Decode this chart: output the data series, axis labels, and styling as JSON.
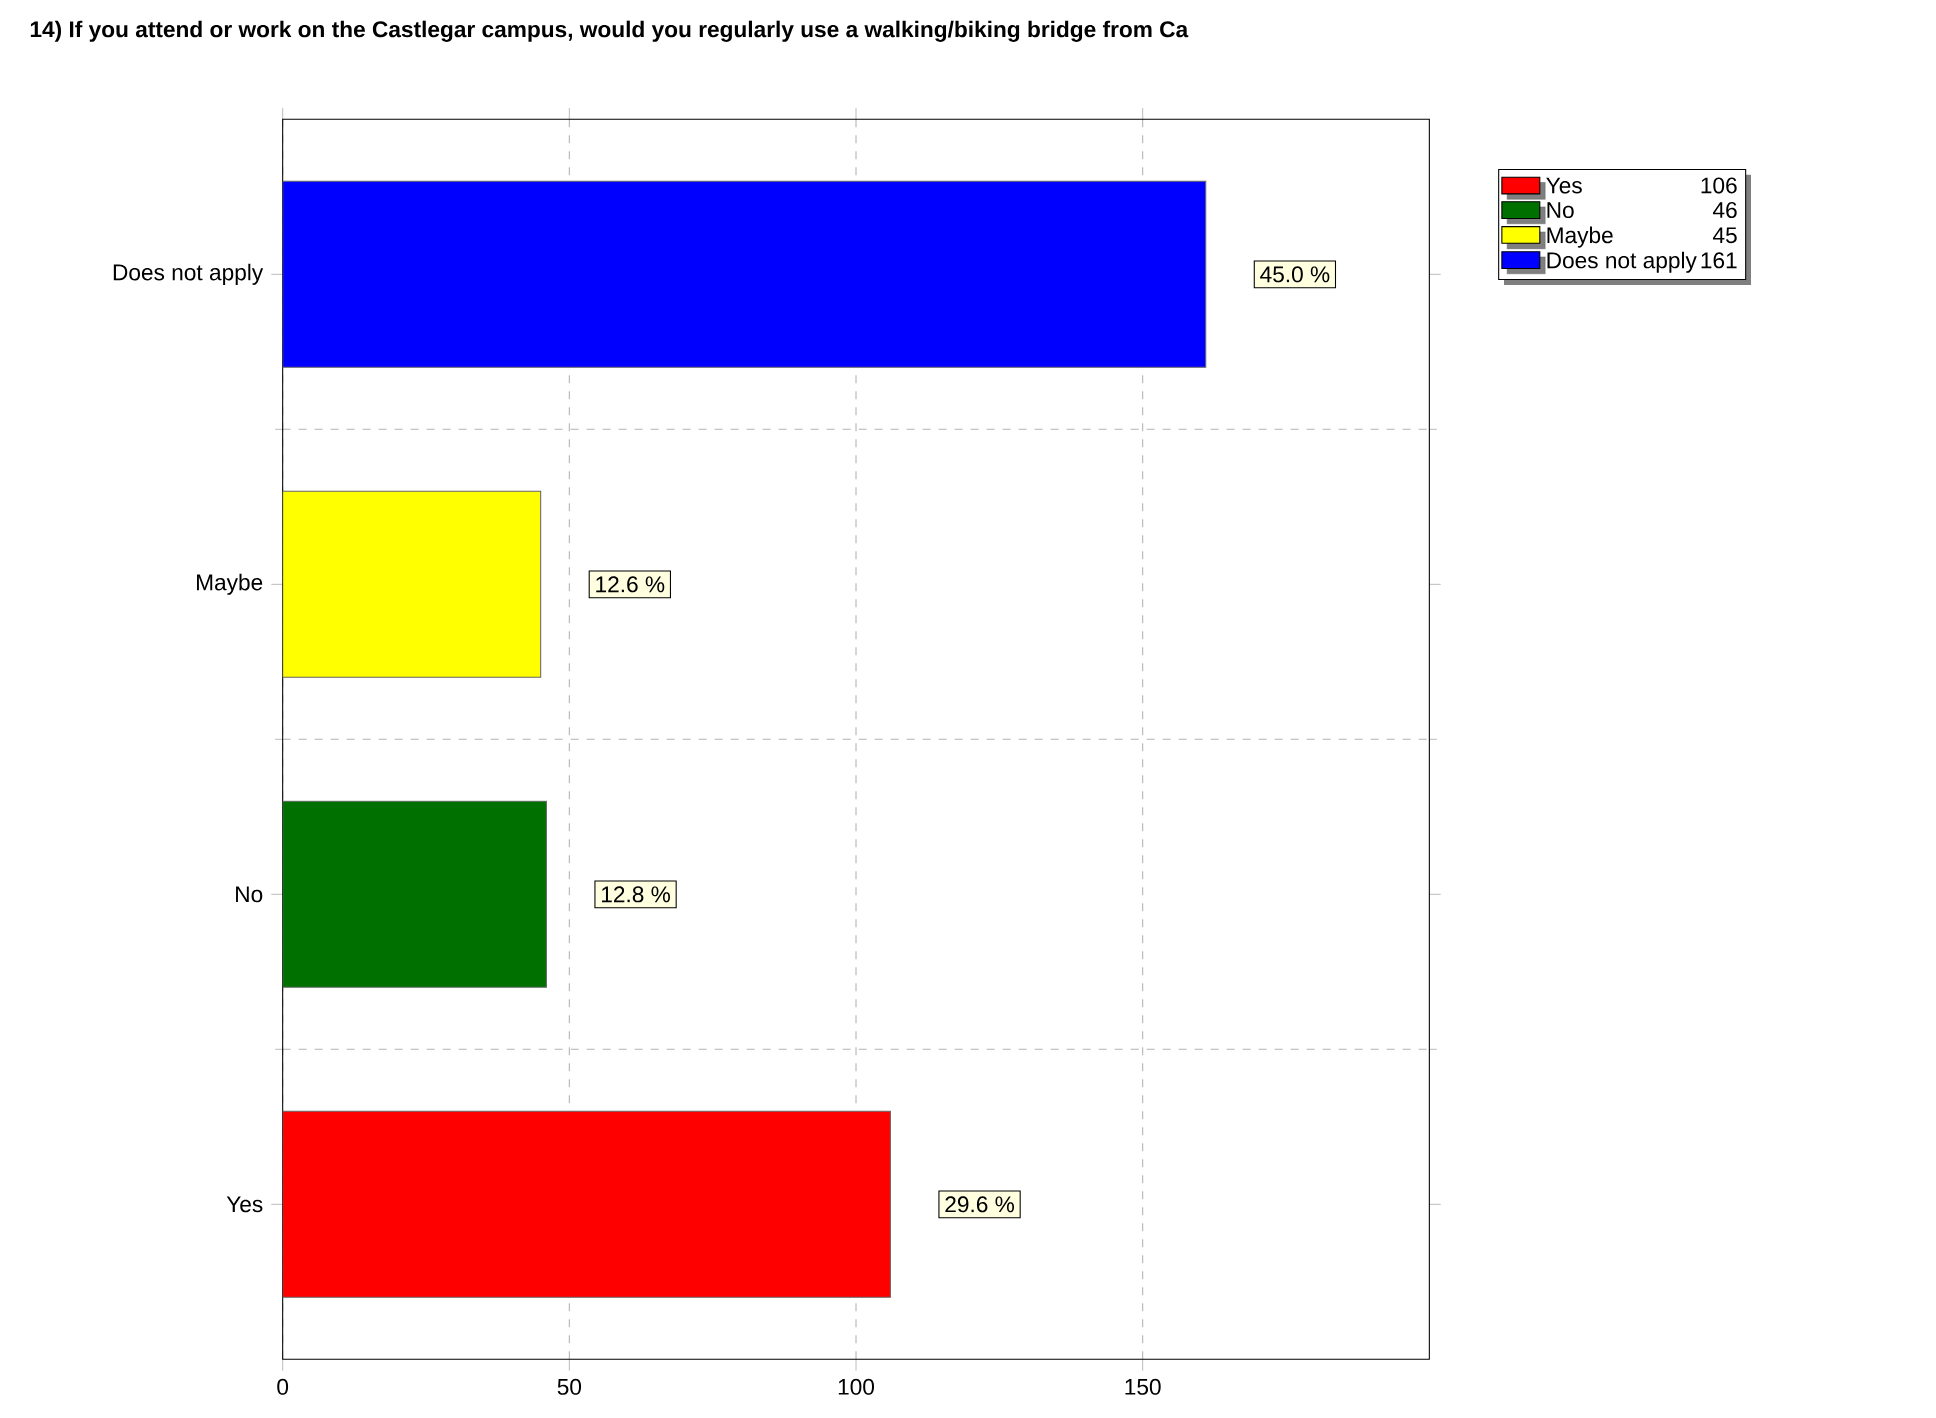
{
  "chart_data": {
    "type": "bar",
    "orientation": "horizontal",
    "title": "14) If you attend or work on the Castlegar campus, would you regularly use a walking/biking bridge from Ca",
    "categories": [
      "Does not apply",
      "Maybe",
      "No",
      "Yes"
    ],
    "series": [
      {
        "name": "Yes",
        "color": "#ff0000",
        "values": [
          null,
          null,
          null,
          106
        ]
      },
      {
        "name": "No",
        "color": "#007000",
        "values": [
          null,
          null,
          46,
          null
        ]
      },
      {
        "name": "Maybe",
        "color": "#ffff00",
        "values": [
          null,
          45,
          null,
          null
        ]
      },
      {
        "name": "Does not apply",
        "color": "#0000ff",
        "values": [
          161,
          null,
          null,
          null
        ]
      }
    ],
    "annotations": [
      "106",
      "46",
      "45",
      "161",
      {
        "text": "45.0 %",
        "x": 161,
        "y": "Does not apply"
      },
      {
        "text": "12.6 %",
        "x": 45,
        "y": "Maybe"
      },
      {
        "text": "12.8 %",
        "x": 46,
        "y": "No"
      },
      {
        "text": "29.6 %",
        "x": 106,
        "y": "Yes"
      }
    ],
    "xlim": [
      0,
      200
    ],
    "xticks": [
      0,
      50,
      100,
      150
    ],
    "grid": true,
    "legend": "top right"
  }
}
